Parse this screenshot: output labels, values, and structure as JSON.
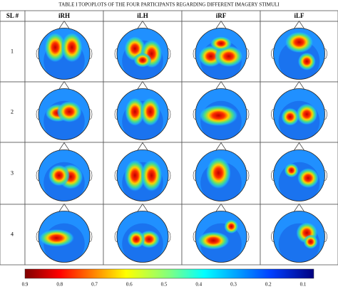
{
  "title": "TABLE I       TOPOPLOTS OF THE FOUR PARTICIPANTS REGARDING DIFFERENT IMAGERY STIMULI",
  "table": {
    "header": [
      "SL #",
      "iRH",
      "iLH",
      "iRF",
      "iLF"
    ],
    "rows": [
      "1",
      "2",
      "3",
      "4"
    ]
  },
  "colorbar": {
    "ticks": [
      "0.9",
      "0.8",
      "0.7",
      "0.6",
      "0.5",
      "0.4",
      "0.3",
      "0.2",
      "0.1"
    ]
  }
}
